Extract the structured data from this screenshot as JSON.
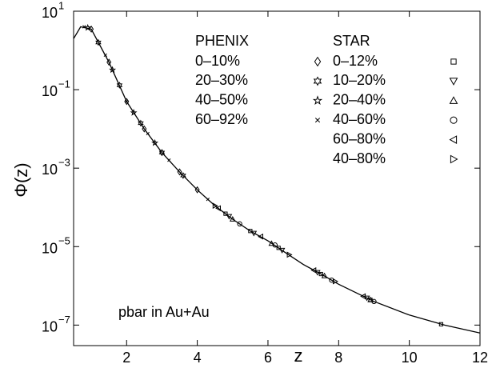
{
  "chart_data": {
    "type": "scatter",
    "x_label": "z",
    "y_label": "Φ(z)",
    "annotation": "pbar in Au+Au",
    "log_y": true,
    "xlim": [
      0.5,
      12
    ],
    "ylim": [
      3e-08,
      10
    ],
    "xticks": [
      2,
      4,
      6,
      8,
      10,
      12
    ],
    "yticks": [
      {
        "value": 10,
        "label": "10",
        "exponent": "1"
      },
      {
        "value": 0.1,
        "label": "10",
        "exponent": "−1"
      },
      {
        "value": 0.001,
        "label": "10",
        "exponent": "−3"
      },
      {
        "value": 1e-05,
        "label": "10",
        "exponent": "−5"
      },
      {
        "value": 1e-07,
        "label": "10",
        "exponent": "−7"
      }
    ],
    "curve": {
      "color": "#000000",
      "x": [
        0.5,
        0.7,
        1,
        1.5,
        2,
        2.5,
        3,
        3.5,
        4,
        4.5,
        5,
        5.5,
        6,
        6.5,
        7,
        7.5,
        8,
        9,
        10,
        11,
        12
      ],
      "values": [
        2.0,
        4.0,
        3.5,
        0.5,
        0.05,
        0.01,
        0.0025,
        0.0008,
        0.00028,
        0.00011,
        5e-05,
        2.5e-05,
        1.4e-05,
        7e-06,
        3.5e-06,
        2e-06,
        1.1e-06,
        4e-07,
        1.8e-07,
        1e-07,
        6.3e-08
      ]
    },
    "groups": [
      {
        "title": "PHENIX",
        "series": [
          {
            "name": "0–10%",
            "marker": "diamond",
            "color": "#000000",
            "x": [
              1,
              1.5,
              2,
              2.5,
              3,
              3.5,
              4
            ],
            "values": [
              3.5,
              0.5,
              0.05,
              0.01,
              0.0025,
              0.0008,
              0.00028
            ]
          },
          {
            "name": "20–30%",
            "marker": "hexagram",
            "color": "#000000",
            "x": [
              1.2,
              1.8,
              2.4,
              3.0,
              3.6
            ],
            "values": [
              1.6,
              0.13,
              0.014,
              0.0025,
              0.00065
            ]
          },
          {
            "name": "40–50%",
            "marker": "star",
            "color": "#000000",
            "x": [
              0.9,
              1.6,
              2.2,
              2.8
            ],
            "values": [
              3.8,
              0.32,
              0.026,
              0.0044
            ]
          },
          {
            "name": "60–92%",
            "marker": "cross",
            "color": "#000000",
            "x": [
              0.8,
              1.4,
              2.0,
              2.6,
              3.2,
              4.3
            ],
            "values": [
              4.0,
              0.76,
              0.05,
              0.0076,
              0.0016,
              0.00016
            ]
          }
        ]
      },
      {
        "title": "STAR",
        "series": [
          {
            "name": "0–12%",
            "marker": "square",
            "color": "#000000",
            "x": [
              4.8,
              5.5,
              6.3,
              7.5,
              8.9,
              10.9
            ],
            "values": [
              6.9e-05,
              2.5e-05,
              9.3e-06,
              2e-06,
              4.4e-07,
              1.05e-07
            ]
          },
          {
            "name": "10–20%",
            "marker": "triangle-down",
            "color": "#000000",
            "x": [
              4.9,
              5.6,
              6.4,
              7.4,
              8.8
            ],
            "values": [
              5.9e-05,
              2.2e-05,
              8.1e-06,
              2.2e-06,
              4.9e-07
            ]
          },
          {
            "name": "20–40%",
            "marker": "triangle-up",
            "color": "#000000",
            "x": [
              5.0,
              6.1,
              7.6,
              8.9
            ],
            "values": [
              5e-05,
              1.2e-05,
              1.8e-06,
              4.4e-07
            ]
          },
          {
            "name": "40–60%",
            "marker": "circle",
            "color": "#000000",
            "x": [
              5.2,
              6.2,
              7.8,
              9.0
            ],
            "values": [
              3.8e-05,
              1.1e-05,
              1.4e-06,
              4e-07
            ]
          },
          {
            "name": "60–80%",
            "marker": "triangle-left",
            "color": "#000000",
            "x": [
              4.6,
              5.8,
              7.3,
              8.7
            ],
            "values": [
              9.5e-05,
              1.8e-05,
              2.5e-06,
              5.4e-07
            ]
          },
          {
            "name": "40–80%",
            "marker": "triangle-right",
            "color": "#000000",
            "x": [
              4.5,
              6.6,
              7.9
            ],
            "values": [
              0.00011,
              6.2e-06,
              1.3e-06
            ]
          }
        ]
      }
    ]
  }
}
